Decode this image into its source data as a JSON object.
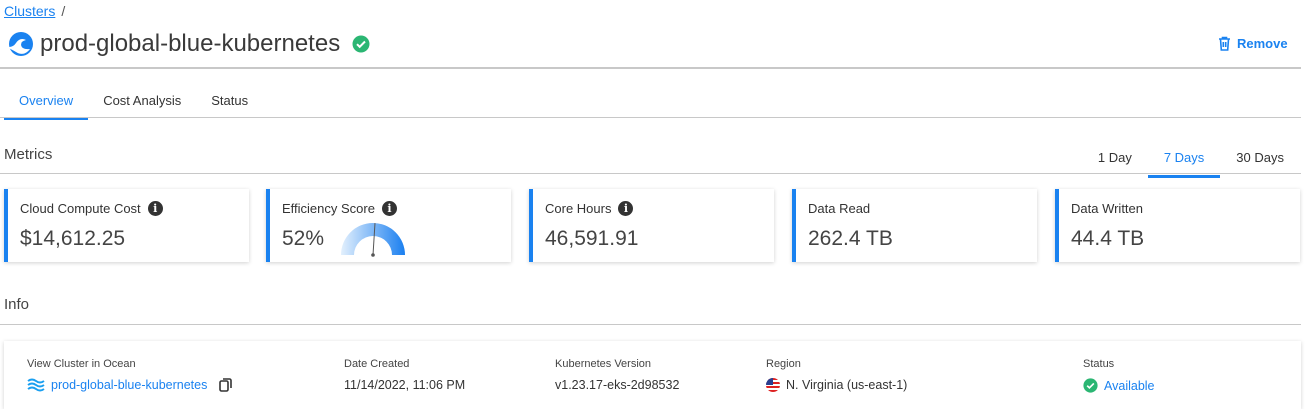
{
  "breadcrumb": {
    "link": "Clusters",
    "separator": "/"
  },
  "header": {
    "title": "prod-global-blue-kubernetes",
    "status_icon": "check-circle-icon",
    "remove_label": "Remove"
  },
  "tabs": [
    {
      "label": "Overview",
      "active": true
    },
    {
      "label": "Cost Analysis"
    },
    {
      "label": "Status"
    }
  ],
  "metrics": {
    "title": "Metrics",
    "ranges": [
      {
        "label": "1 Day"
      },
      {
        "label": "7 Days",
        "active": true
      },
      {
        "label": "30 Days"
      }
    ],
    "cards": [
      {
        "label": "Cloud Compute Cost",
        "value": "$14,612.25",
        "info": true
      },
      {
        "label": "Efficiency Score",
        "value": "52%",
        "info": true,
        "gauge_percent": 52
      },
      {
        "label": "Core Hours",
        "value": "46,591.91",
        "info": true
      },
      {
        "label": "Data Read",
        "value": "262.4 TB"
      },
      {
        "label": "Data Written",
        "value": "44.4 TB"
      }
    ]
  },
  "info": {
    "title": "Info",
    "view_cluster": {
      "label": "View Cluster in Ocean",
      "value": "prod-global-blue-kubernetes"
    },
    "date_created": {
      "label": "Date Created",
      "value": "11/14/2022, 11:06 PM"
    },
    "k8s_version": {
      "label": "Kubernetes Version",
      "value": "v1.23.17-eks-2d98532"
    },
    "region": {
      "label": "Region",
      "value": "N. Virginia (us-east-1)"
    },
    "status": {
      "label": "Status",
      "value": "Available"
    }
  },
  "colors": {
    "accent": "#1a82f0",
    "success": "#2bb673"
  }
}
